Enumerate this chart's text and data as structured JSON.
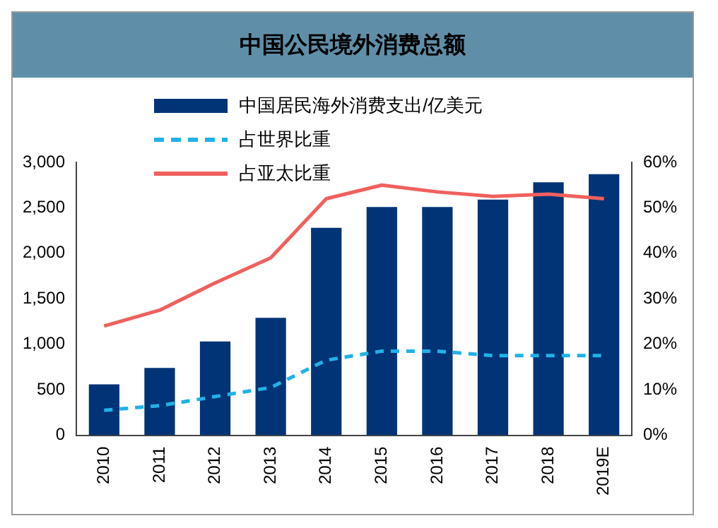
{
  "chart_data": {
    "type": "bar",
    "title": "中国公民境外消费总额",
    "categories": [
      "2010",
      "2011",
      "2012",
      "2013",
      "2014",
      "2015",
      "2016",
      "2017",
      "2018",
      "2019E"
    ],
    "series": [
      {
        "name": "中国居民海外消费支出/亿美元",
        "color": "#003476",
        "values": [
          560,
          740,
          1030,
          1290,
          2280,
          2510,
          2510,
          2590,
          2780,
          2870
        ]
      },
      {
        "name": "占世界比重",
        "type": "line",
        "axis": "y2",
        "line_style": "dashed",
        "color": "#1fb2e8",
        "values": [
          5.5,
          6.5,
          8.5,
          10.5,
          16.5,
          18.5,
          18.5,
          17.5,
          17.5,
          17.5
        ]
      },
      {
        "name": "占亚太比重",
        "type": "line",
        "axis": "y2",
        "line_style": "solid",
        "color": "#f0605e",
        "values": [
          24,
          27.5,
          33.5,
          39,
          52,
          55,
          53.5,
          52.5,
          53,
          52
        ]
      }
    ],
    "ylim": [
      0,
      3000
    ],
    "yticks": [
      0,
      {
        "value": 500,
        "label": "500"
      },
      {
        "value": 1000,
        "label": "1,000"
      },
      {
        "value": 1500,
        "label": "1,500"
      },
      {
        "value": 2000,
        "label": "2,000"
      },
      {
        "value": 2500,
        "label": "2,500"
      },
      {
        "value": 3000,
        "label": "3,000"
      }
    ],
    "y2lim": [
      0,
      60
    ],
    "y2ticks": [
      {
        "value": 0,
        "label": "0%"
      },
      {
        "value": 10,
        "label": "10%"
      },
      {
        "value": 20,
        "label": "20%"
      },
      {
        "value": 30,
        "label": "30%"
      },
      {
        "value": 40,
        "label": "40%"
      },
      {
        "value": 50,
        "label": "50%"
      },
      {
        "value": 60,
        "label": "60%"
      }
    ],
    "legend": "top left",
    "grid": false,
    "marker": "none"
  }
}
